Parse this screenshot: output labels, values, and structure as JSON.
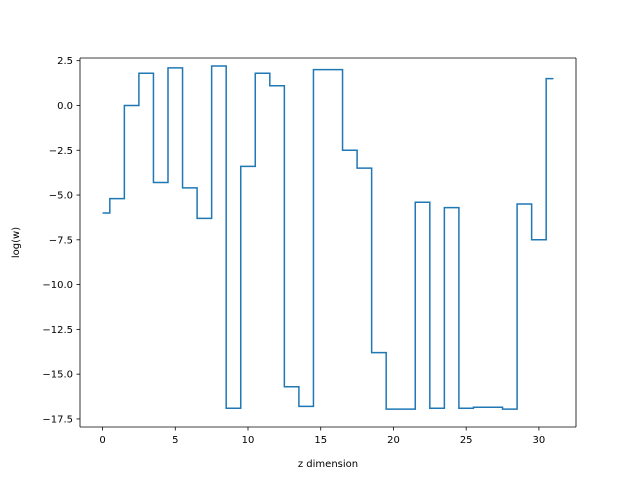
{
  "chart_data": {
    "type": "line",
    "drawstyle": "steps-mid",
    "title": "",
    "xlabel": "z dimension",
    "ylabel": "log(w)",
    "xlim": [
      -1.55,
      32.55
    ],
    "ylim": [
      -17.95,
      2.65
    ],
    "x_ticks": [
      0,
      5,
      10,
      15,
      20,
      25,
      30
    ],
    "x_tick_labels": [
      "0",
      "5",
      "10",
      "15",
      "20",
      "25",
      "30"
    ],
    "y_ticks": [
      2.5,
      0.0,
      -2.5,
      -5.0,
      -7.5,
      -10.0,
      -12.5,
      -15.0,
      -17.5
    ],
    "y_tick_labels": [
      "2.5",
      "0.0",
      "−2.5",
      "−5.0",
      "−7.5",
      "−10.0",
      "−12.5",
      "−15.0",
      "−17.5"
    ],
    "grid": false,
    "color": "#1f77b4",
    "series": [
      {
        "x": [
          0,
          1,
          2,
          3,
          4,
          5,
          6,
          7,
          8,
          9,
          10,
          11,
          12,
          13,
          14,
          15,
          16,
          17,
          18,
          19,
          20,
          21,
          22,
          23,
          24,
          25,
          26,
          27,
          28,
          29,
          30,
          31
        ],
        "values": [
          -6.0,
          -5.2,
          0.0,
          1.8,
          -4.3,
          2.1,
          -4.6,
          -6.3,
          2.2,
          -16.9,
          -3.4,
          1.8,
          1.1,
          -15.7,
          -16.8,
          2.0,
          2.0,
          -2.5,
          -3.5,
          -13.8,
          -16.95,
          -16.95,
          -5.4,
          -16.9,
          -5.7,
          -16.9,
          -16.85,
          -16.85,
          -16.95,
          -5.5,
          -7.5,
          1.5
        ]
      }
    ]
  }
}
